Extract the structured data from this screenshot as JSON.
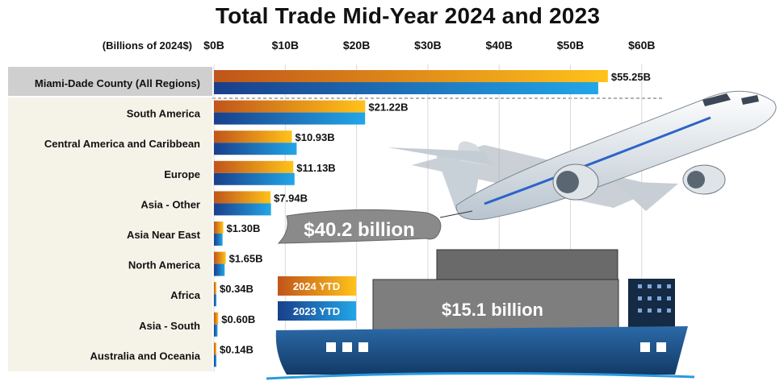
{
  "chart_data": {
    "type": "bar",
    "orientation": "horizontal",
    "title": "Total Trade Mid-Year 2024 and 2023",
    "unit_label": "(Billions of 2024$)",
    "xlim": [
      0,
      60
    ],
    "x_ticks": [
      "$0B",
      "$10B",
      "$20B",
      "$30B",
      "$40B",
      "$50B",
      "$60B"
    ],
    "categories": [
      "Miami-Dade County (All Regions)",
      "South America",
      "Central America and Caribbean",
      "Europe",
      "Asia - Other",
      "Asia Near East",
      "North America",
      "Africa",
      "Asia - South",
      "Australia and Oceania"
    ],
    "series": [
      {
        "name": "2024 YTD",
        "color": "#f0a52a",
        "values": [
          55.25,
          21.22,
          10.93,
          11.13,
          7.94,
          1.3,
          1.65,
          0.34,
          0.6,
          0.14
        ],
        "data_labels": [
          "$55.25B",
          "$21.22B",
          "$10.93B",
          "$11.13B",
          "$7.94B",
          "$1.30B",
          "$1.65B",
          "$0.34B",
          "$0.60B",
          "$0.14B"
        ]
      },
      {
        "name": "2023 YTD",
        "color": "#1f78c8",
        "values": [
          53.9,
          21.2,
          11.6,
          11.3,
          8.0,
          1.2,
          1.5,
          0.3,
          0.5,
          0.1
        ]
      }
    ],
    "annotations": {
      "air": "$40.2 billion",
      "sea": "$15.1 billion"
    },
    "legend_position": "center"
  }
}
